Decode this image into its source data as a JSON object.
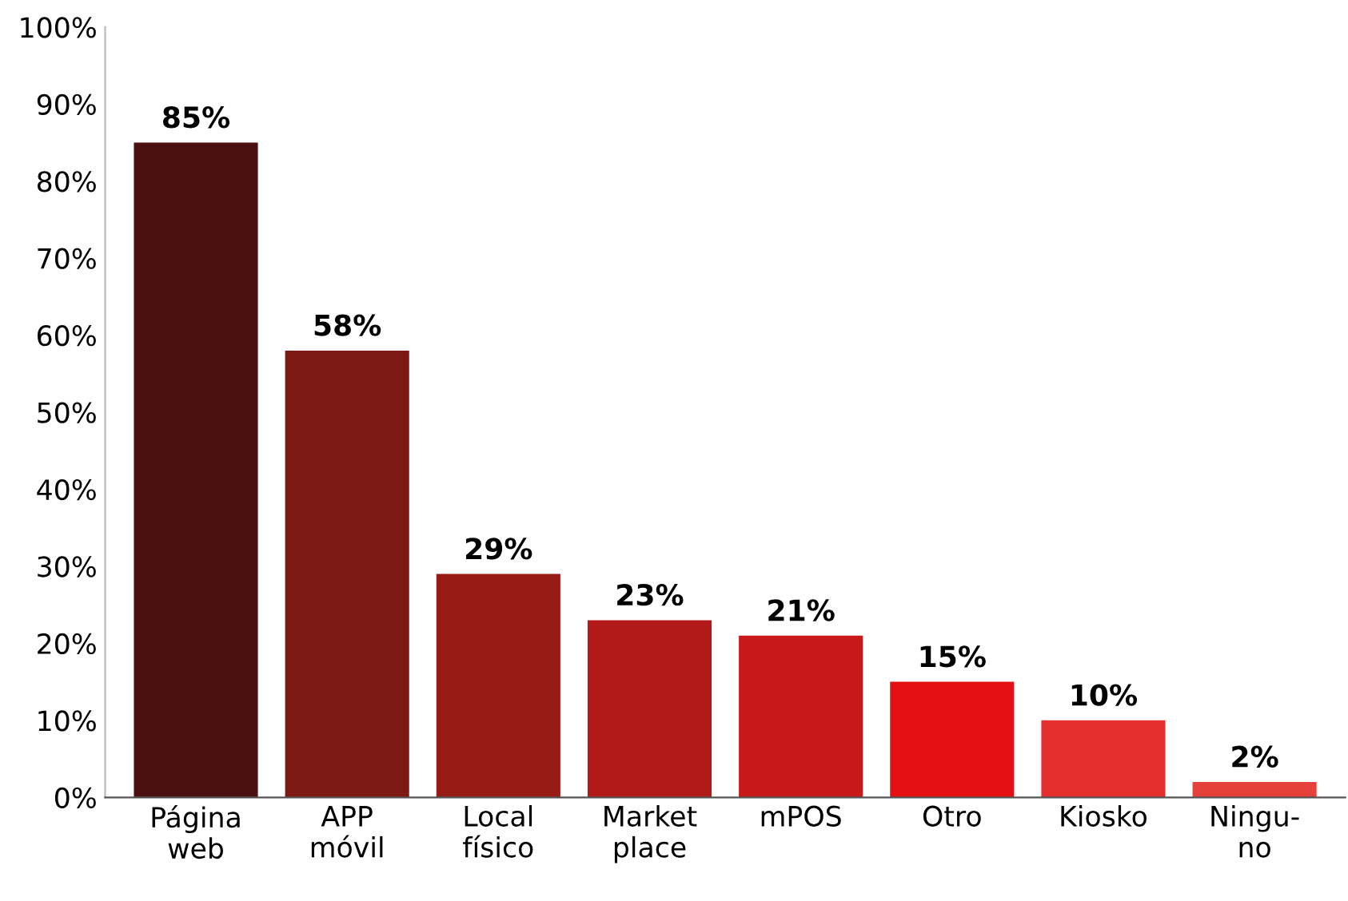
{
  "chart_data": {
    "type": "bar",
    "categories": [
      "Página\nweb",
      "APP\nmóvil",
      "Local\nfísico",
      "Market\nplace",
      "mPOS",
      "Otro",
      "Kiosko",
      "Ningu-\nno"
    ],
    "values": [
      85,
      58,
      29,
      23,
      21,
      15,
      10,
      2
    ],
    "colors": [
      "#4a1012",
      "#7d1813",
      "#981a15",
      "#b21a19",
      "#c8191a",
      "#e51013",
      "#e52e2e",
      "#e5413a"
    ],
    "value_labels": [
      "85%",
      "58%",
      "29%",
      "23%",
      "21%",
      "15%",
      "10%",
      "2%"
    ],
    "ylim": [
      0,
      100
    ],
    "yticks": [
      {
        "value": 0,
        "label": "0%"
      },
      {
        "value": 10,
        "label": "10%"
      },
      {
        "value": 20,
        "label": "20%"
      },
      {
        "value": 30,
        "label": "30%"
      },
      {
        "value": 40,
        "label": "40%"
      },
      {
        "value": 50,
        "label": "50%"
      },
      {
        "value": 60,
        "label": "60%"
      },
      {
        "value": 70,
        "label": "70%"
      },
      {
        "value": 80,
        "label": "80%"
      },
      {
        "value": 90,
        "label": "90%"
      },
      {
        "value": 100,
        "label": "100%"
      }
    ],
    "grid": false,
    "legend": false
  }
}
